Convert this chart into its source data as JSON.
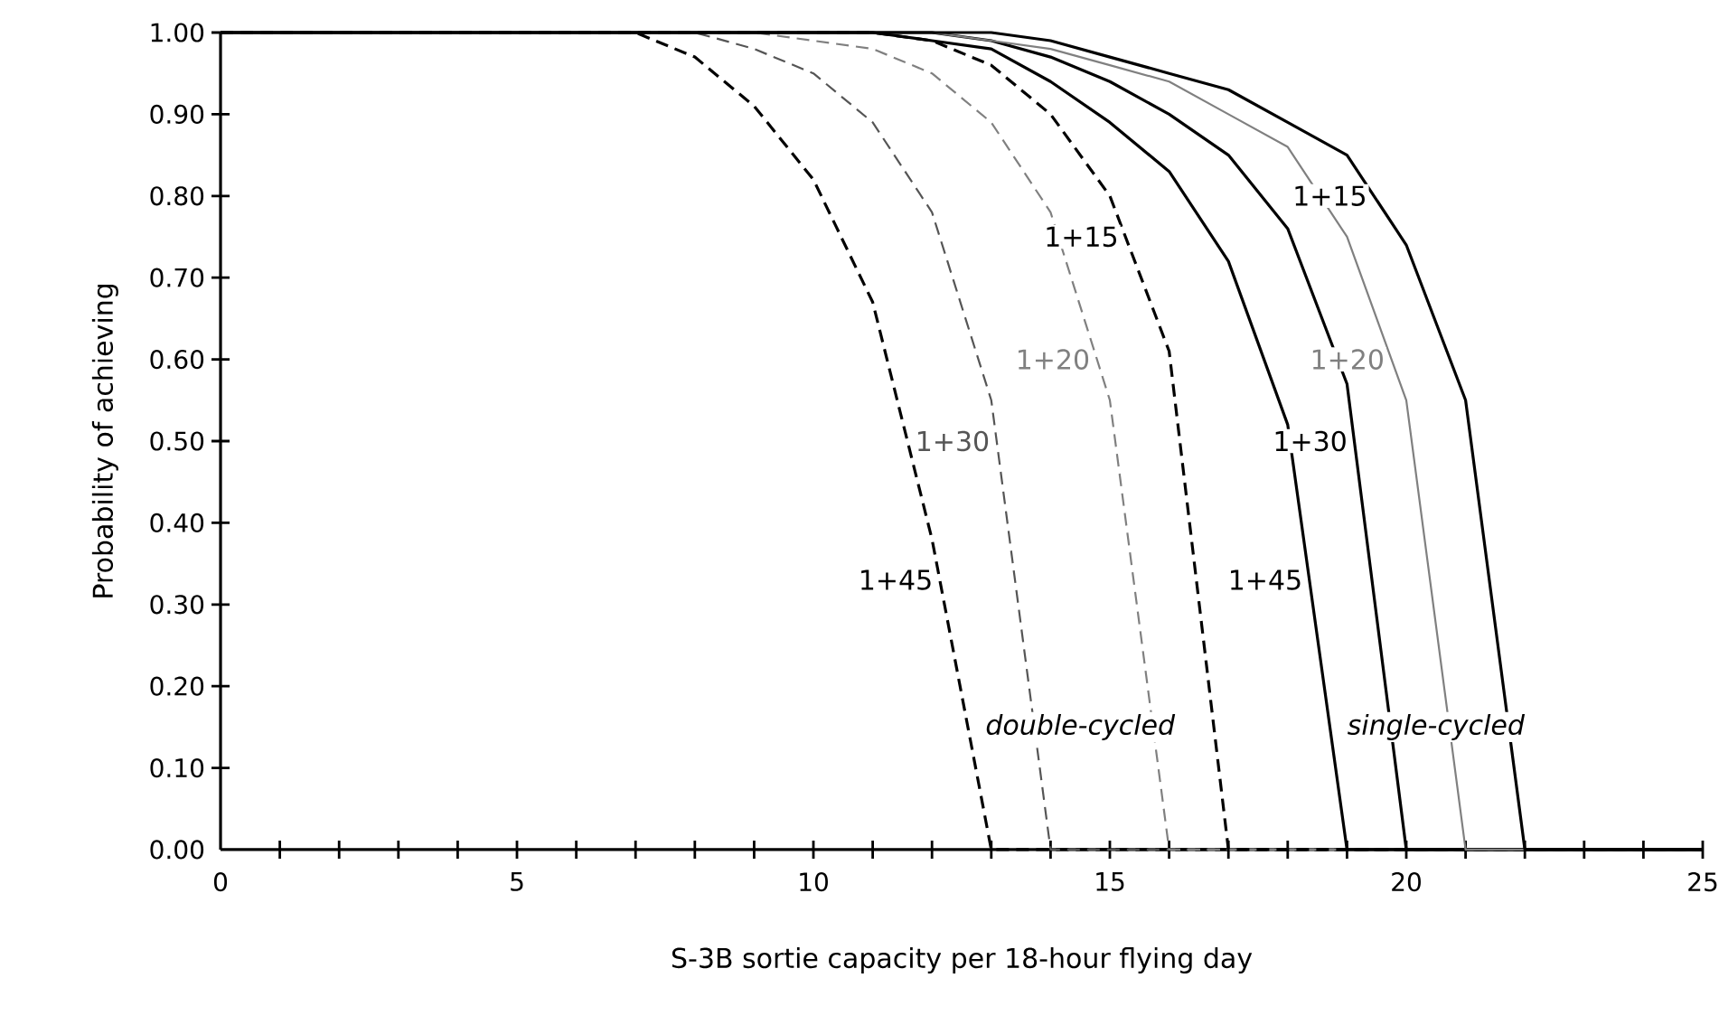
{
  "chart_data": {
    "type": "line",
    "xlabel": "S-3B sortie capacity per 18-hour flying day",
    "ylabel": "Probability of achieving",
    "xlim": [
      0,
      25
    ],
    "ylim": [
      0,
      1
    ],
    "xticks": [
      0,
      {
        "value": 1,
        "label": null
      },
      {
        "value": 2,
        "label": null
      },
      {
        "value": 3,
        "label": null
      },
      {
        "value": 4,
        "label": null
      },
      5,
      {
        "value": 6,
        "label": null
      },
      {
        "value": 7,
        "label": null
      },
      {
        "value": 8,
        "label": null
      },
      {
        "value": 9,
        "label": null
      },
      10,
      {
        "value": 11,
        "label": null
      },
      {
        "value": 12,
        "label": null
      },
      {
        "value": 13,
        "label": null
      },
      {
        "value": 14,
        "label": null
      },
      15,
      {
        "value": 16,
        "label": null
      },
      {
        "value": 17,
        "label": null
      },
      {
        "value": 18,
        "label": null
      },
      {
        "value": 19,
        "label": null
      },
      20,
      {
        "value": 21,
        "label": null
      },
      {
        "value": 22,
        "label": null
      },
      {
        "value": 23,
        "label": null
      },
      {
        "value": 24,
        "label": null
      },
      25
    ],
    "yticks": [
      {
        "value": 0,
        "label": "0.00"
      },
      {
        "value": 0.1,
        "label": "0.10"
      },
      {
        "value": 0.2,
        "label": "0.20"
      },
      {
        "value": 0.3,
        "label": "0.30"
      },
      {
        "value": 0.4,
        "label": "0.40"
      },
      {
        "value": 0.5,
        "label": "0.50"
      },
      {
        "value": 0.6,
        "label": "0.60"
      },
      {
        "value": 0.7,
        "label": "0.70"
      },
      {
        "value": 0.8,
        "label": "0.80"
      },
      {
        "value": 0.9,
        "label": "0.90"
      },
      {
        "value": 1,
        "label": "1.00"
      }
    ],
    "grid": false,
    "marker": "none",
    "series": [
      {
        "name": "1+45",
        "color": "#000000",
        "line_style": "dashed",
        "x": [
          0,
          7,
          8,
          9,
          10,
          11,
          12,
          13,
          25
        ],
        "values": [
          1,
          1,
          0.97,
          0.91,
          0.82,
          0.67,
          0.38,
          0,
          0
        ]
      },
      {
        "name": "1+30",
        "color": "#555555",
        "line_style": "dashed",
        "x": [
          0,
          8,
          9,
          10,
          11,
          12,
          13,
          14,
          25
        ],
        "values": [
          1,
          1,
          0.98,
          0.95,
          0.89,
          0.78,
          0.55,
          0,
          0
        ]
      },
      {
        "name": "1+20",
        "color": "#808080",
        "line_style": "dashed",
        "x": [
          0,
          9,
          10,
          11,
          12,
          13,
          14,
          15,
          16,
          25
        ],
        "values": [
          1,
          1,
          0.99,
          0.98,
          0.95,
          0.89,
          0.78,
          0.55,
          0,
          0
        ]
      },
      {
        "name": "1+15",
        "color": "#000000",
        "line_style": "dashed",
        "x": [
          0,
          11,
          12,
          13,
          14,
          15,
          16,
          17,
          25
        ],
        "values": [
          1,
          1,
          0.99,
          0.96,
          0.9,
          0.8,
          0.61,
          0,
          0
        ]
      },
      {
        "name": "1+45",
        "color": "#000000",
        "line_style": "solid",
        "x": [
          0,
          11,
          12,
          13,
          14,
          15,
          16,
          17,
          18,
          19,
          25
        ],
        "values": [
          1,
          1,
          0.99,
          0.98,
          0.94,
          0.89,
          0.83,
          0.72,
          0.52,
          0,
          0
        ]
      },
      {
        "name": "1+30",
        "color": "#000000",
        "line_style": "solid",
        "x": [
          0,
          12,
          13,
          14,
          15,
          16,
          17,
          18,
          19,
          20,
          25
        ],
        "values": [
          1,
          1,
          0.99,
          0.97,
          0.94,
          0.9,
          0.85,
          0.76,
          0.57,
          0,
          0
        ]
      },
      {
        "name": "1+20",
        "color": "#808080",
        "line_style": "solid",
        "x": [
          0,
          12,
          13,
          14,
          15,
          16,
          17,
          18,
          19,
          20,
          21,
          25
        ],
        "values": [
          1,
          1,
          0.99,
          0.98,
          0.96,
          0.94,
          0.9,
          0.86,
          0.75,
          0.55,
          0,
          0
        ]
      },
      {
        "name": "1+15",
        "color": "#000000",
        "line_style": "solid",
        "x": [
          0,
          13,
          14,
          15,
          16,
          17,
          18,
          19,
          20,
          21,
          22,
          25
        ],
        "values": [
          1,
          1,
          0.99,
          0.97,
          0.95,
          0.93,
          0.89,
          0.85,
          0.74,
          0.55,
          0,
          0
        ]
      }
    ],
    "annotations": [
      "double-cycled",
      "single-cycled"
    ]
  }
}
